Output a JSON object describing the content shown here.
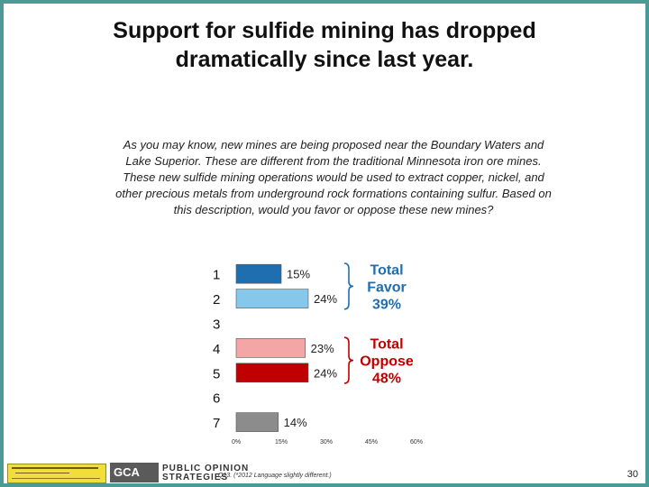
{
  "title_line1": "Support for sulfide mining has dropped",
  "title_line2": "dramatically since last year.",
  "question_lines": [
    "As you may know, new mines are being proposed near the Boundary Waters and",
    "Lake Superior.  These are different from the traditional Minnesota iron ore mines.",
    "These new sulfide mining operations would be used to extract copper, nickel, and",
    "other precious metals from underground rock formations containing sulfur.  Based on",
    "this description, would you favor or oppose these new mines?"
  ],
  "chart_data": {
    "type": "bar",
    "orientation": "horizontal",
    "categories": [
      "1",
      "2",
      "3",
      "4",
      "5",
      "6",
      "7"
    ],
    "values": [
      15,
      24,
      null,
      23,
      24,
      null,
      14
    ],
    "data_labels": [
      "15%",
      "24%",
      "",
      "23%",
      "24%",
      "",
      "14%"
    ],
    "bar_colors": [
      "#1f6fb0",
      "#86c7ec",
      null,
      "#f4a6a6",
      "#c00000",
      null,
      "#8c8c8c"
    ],
    "xlim": [
      0,
      60
    ],
    "x_ticks": [
      "0%",
      "15%",
      "30%",
      "45%",
      "60%"
    ],
    "grid": false,
    "annotations": [
      {
        "text_lines": [
          "Total",
          "Favor",
          "39%"
        ],
        "color": "#1f6fb0",
        "brackets": [
          "1",
          "2"
        ]
      },
      {
        "text_lines": [
          "Total",
          "Oppose",
          "48%"
        ],
        "color": "#c00000",
        "brackets": [
          "4",
          "5"
        ]
      }
    ]
  },
  "footer_note": "Q13. (*2012 Language slightly different.)",
  "page_number": "30",
  "logo_text_line1": "PUBLIC OPINION",
  "logo_text_line2": "STRATEGIES",
  "logo_mark": "GCA"
}
